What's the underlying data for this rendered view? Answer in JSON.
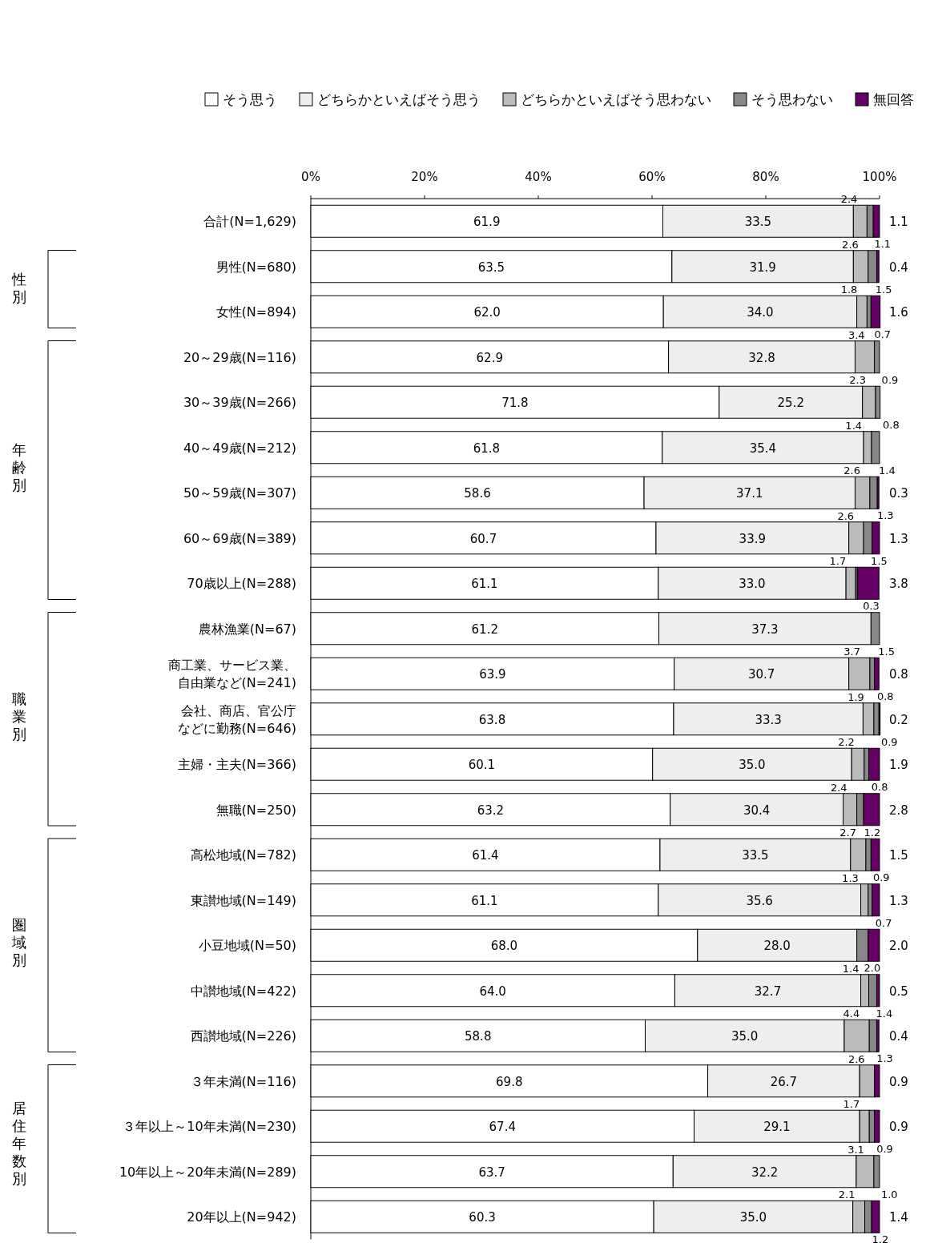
{
  "chart_data": {
    "type": "bar",
    "orientation": "horizontal",
    "stacked": true,
    "legend": "top",
    "grid": false,
    "categories": [
      "合計(N=1,629)",
      "男性(N=680)",
      "女性(N=894)",
      "20～29歳(N=116)",
      "30～39歳(N=266)",
      "40～49歳(N=212)",
      "50～59歳(N=307)",
      "60～69歳(N=389)",
      "70歳以上(N=288)",
      "農林漁業(N=67)",
      "商工業、サービス業、自由業など(N=241)",
      "会社、商店、官公庁などに勤務(N=646)",
      "主婦・主夫(N=366)",
      "無職(N=250)",
      "高松地域(N=782)",
      "東讃地域(N=149)",
      "小豆地域(N=50)",
      "中讃地域(N=422)",
      "西讃地域(N=226)",
      "３年未満(N=116)",
      "３年以上～10年未満(N=230)",
      "10年以上～20年未満(N=289)",
      "20年以上(N=942)"
    ],
    "xlim": [
      0,
      100
    ],
    "xticks": [
      {
        "value": 0,
        "label": "0%"
      },
      {
        "value": 20,
        "label": "20%"
      },
      {
        "value": 40,
        "label": "40%"
      },
      {
        "value": 60,
        "label": "60%"
      },
      {
        "value": 80,
        "label": "80%"
      },
      {
        "value": 100,
        "label": "100%"
      }
    ],
    "series": [
      {
        "name": "そう思う",
        "color": "#ffffff",
        "values": [
          61.9,
          63.5,
          62.0,
          62.9,
          71.8,
          61.8,
          58.6,
          60.7,
          61.1,
          61.2,
          63.9,
          63.8,
          60.1,
          63.2,
          61.4,
          61.1,
          68.0,
          64.0,
          58.8,
          69.8,
          67.4,
          63.7,
          60.3
        ],
        "value_labels": [
          "61.9",
          "63.5",
          "62.0",
          "62.9",
          "71.8",
          "61.8",
          "58.6",
          "60.7",
          "61.1",
          "61.2",
          "63.9",
          "63.8",
          "60.1",
          "63.2",
          "61.4",
          "61.1",
          "68.0",
          "64.0",
          "58.8",
          "69.8",
          "67.4",
          "63.7",
          "60.3"
        ]
      },
      {
        "name": "どちらかといえばそう思う",
        "color": "#eeeeee",
        "values": [
          33.5,
          31.9,
          34.0,
          32.8,
          25.2,
          35.4,
          37.1,
          33.9,
          33.0,
          37.3,
          30.7,
          33.3,
          35.0,
          30.4,
          33.5,
          35.6,
          28.0,
          32.7,
          35.0,
          26.7,
          29.1,
          32.2,
          35.0
        ],
        "value_labels": [
          "33.5",
          "31.9",
          "34.0",
          "32.8",
          "25.2",
          "35.4",
          "37.1",
          "33.9",
          "33.0",
          "37.3",
          "30.7",
          "33.3",
          "35.0",
          "30.4",
          "33.5",
          "35.6",
          "28.0",
          "32.7",
          "35.0",
          "26.7",
          "29.1",
          "32.2",
          "35.0"
        ]
      },
      {
        "name": "どちらかといえばそう思わない",
        "color": "#bbbbbb",
        "values": [
          2.4,
          2.6,
          1.8,
          3.4,
          2.3,
          1.4,
          2.6,
          2.6,
          1.7,
          null,
          3.7,
          1.9,
          2.2,
          2.4,
          2.7,
          1.3,
          null,
          1.4,
          4.4,
          2.6,
          1.7,
          3.1,
          2.1
        ],
        "value_labels": [
          "2.4",
          "2.6",
          "1.8",
          "3.4",
          "2.3",
          "1.4",
          "2.6",
          "2.6",
          "1.7",
          null,
          "3.7",
          "1.9",
          "2.2",
          "2.4",
          "2.7",
          "1.3",
          null,
          "1.4",
          "4.4",
          "2.6",
          "1.7",
          "3.1",
          "2.1"
        ]
      },
      {
        "name": "そう思わない",
        "color": "#888888",
        "values": [
          1.1,
          1.5,
          0.7,
          0.9,
          0.8,
          1.4,
          1.3,
          1.5,
          0.3,
          1.5,
          0.8,
          0.9,
          0.8,
          1.2,
          0.9,
          0.7,
          2.0,
          1.4,
          1.3,
          null,
          0.9,
          1.0,
          1.2
        ],
        "value_labels": [
          "1.1",
          "1.5",
          "0.7",
          "0.9",
          "0.8",
          "1.4",
          "1.3",
          "1.5",
          "0.3",
          "1.5",
          "0.8",
          "0.9",
          "0.8",
          "1.2",
          "0.9",
          "0.7",
          "2.0",
          "1.4",
          "1.3",
          null,
          "0.9",
          "1.0",
          "1.2"
        ]
      },
      {
        "name": "無回答",
        "color": "#660066",
        "values": [
          1.1,
          0.4,
          1.6,
          null,
          null,
          null,
          0.3,
          1.3,
          3.8,
          null,
          0.8,
          0.2,
          1.9,
          2.8,
          1.5,
          1.3,
          2.0,
          0.5,
          0.4,
          0.9,
          0.9,
          null,
          1.4
        ],
        "value_labels": [
          "1.1",
          "0.4",
          "1.6",
          null,
          null,
          null,
          "0.3",
          "1.3",
          "3.8",
          null,
          "0.8",
          "0.2",
          "1.9",
          "2.8",
          "1.5",
          "1.3",
          "2.0",
          "0.5",
          "0.4",
          "0.9",
          "0.9",
          null,
          "1.4"
        ]
      }
    ],
    "annotations": [
      "性別",
      "年齢別",
      "職業別",
      "圏域別",
      "居住年数別"
    ]
  }
}
